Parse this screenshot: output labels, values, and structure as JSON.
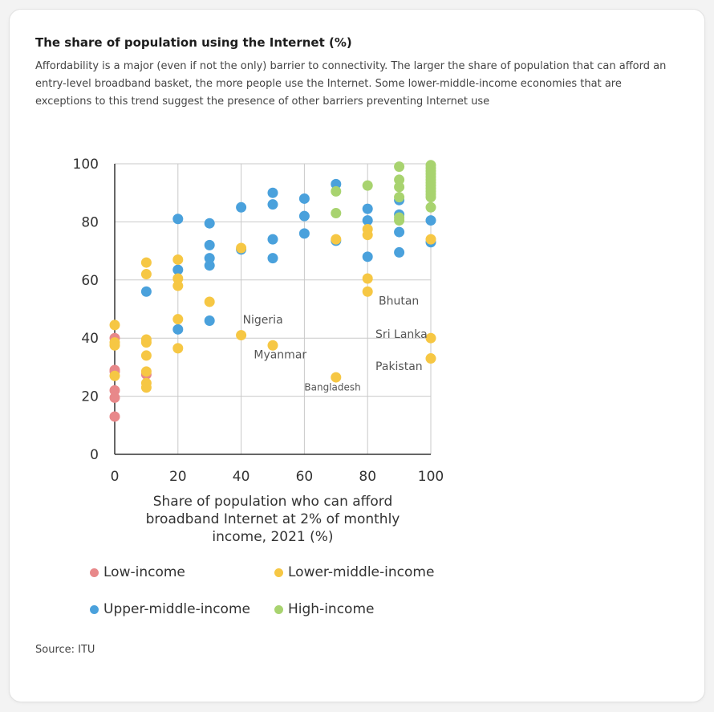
{
  "card": {
    "title": "The share of population using the Internet (%)",
    "description": "Affordability is a major (even if not the only) barrier to connectivity. The larger the share of population that can afford an entry-level broadband basket, the more people use the Internet. Some lower-middle-income economies that are exceptions to this trend suggest the presence of other barriers preventing Internet use",
    "source": "Source: ITU"
  },
  "chart_data": {
    "type": "scatter",
    "title": "The share of population using the Internet (%)",
    "xlabel": "Share of population who can afford broadband Internet at 2% of monthly income, 2021 (%)",
    "ylabel": "",
    "xlim": [
      0,
      100
    ],
    "ylim": [
      0,
      100
    ],
    "x_ticks": [
      "0",
      "20",
      "40",
      "60",
      "80",
      "100"
    ],
    "y_ticks": [
      "0",
      "20",
      "40",
      "60",
      "80",
      "100"
    ],
    "grid": true,
    "legend_position": "bottom",
    "series": [
      {
        "name": "Low-income",
        "color": "#e8888a",
        "points": [
          [
            0,
            13
          ],
          [
            0,
            19.5
          ],
          [
            0,
            22
          ],
          [
            0,
            29
          ],
          [
            0,
            28.5
          ],
          [
            0,
            40
          ],
          [
            10,
            27.5
          ]
        ]
      },
      {
        "name": "Lower-middle-income",
        "color": "#f6c744",
        "points": [
          [
            0,
            27
          ],
          [
            0,
            37.5
          ],
          [
            0,
            44.5
          ],
          [
            0,
            38.5
          ],
          [
            10,
            23
          ],
          [
            10,
            24.5
          ],
          [
            10,
            28.5
          ],
          [
            10,
            34
          ],
          [
            10,
            38.5
          ],
          [
            10,
            39.5
          ],
          [
            10,
            62
          ],
          [
            10,
            66
          ],
          [
            20,
            36.5
          ],
          [
            20,
            46.5
          ],
          [
            20,
            58
          ],
          [
            20,
            60.5
          ],
          [
            20,
            67
          ],
          [
            30,
            52.5
          ],
          [
            40,
            41
          ],
          [
            40,
            71
          ],
          [
            50,
            37.5
          ],
          [
            70,
            26.5
          ],
          [
            70,
            74
          ],
          [
            80,
            56
          ],
          [
            80,
            60.5
          ],
          [
            80,
            75.5
          ],
          [
            80,
            77.5
          ],
          [
            100,
            33
          ],
          [
            100,
            40
          ],
          [
            100,
            74
          ]
        ]
      },
      {
        "name": "Upper-middle-income",
        "color": "#4aa1dc",
        "points": [
          [
            10,
            56
          ],
          [
            20,
            43
          ],
          [
            20,
            63.5
          ],
          [
            20,
            81
          ],
          [
            30,
            46
          ],
          [
            30,
            65
          ],
          [
            30,
            67.5
          ],
          [
            30,
            72
          ],
          [
            30,
            79.5
          ],
          [
            40,
            70.5
          ],
          [
            40,
            85
          ],
          [
            50,
            67.5
          ],
          [
            50,
            74
          ],
          [
            50,
            86
          ],
          [
            50,
            90
          ],
          [
            60,
            76
          ],
          [
            60,
            82
          ],
          [
            60,
            88
          ],
          [
            70,
            73.5
          ],
          [
            70,
            93
          ],
          [
            80,
            68
          ],
          [
            80,
            80.5
          ],
          [
            80,
            84.5
          ],
          [
            90,
            69.5
          ],
          [
            90,
            76.5
          ],
          [
            90,
            82.5
          ],
          [
            90,
            87.5
          ],
          [
            100,
            73
          ],
          [
            100,
            80.5
          ]
        ]
      },
      {
        "name": "High-income",
        "color": "#a8d36f",
        "points": [
          [
            70,
            83
          ],
          [
            70,
            90.5
          ],
          [
            80,
            92.5
          ],
          [
            90,
            80.5
          ],
          [
            90,
            81.5
          ],
          [
            90,
            88.5
          ],
          [
            90,
            92
          ],
          [
            90,
            94.5
          ],
          [
            90,
            99
          ],
          [
            100,
            85
          ],
          [
            100,
            88.5
          ],
          [
            100,
            89.5
          ],
          [
            100,
            90.5
          ],
          [
            100,
            91.5
          ],
          [
            100,
            92.5
          ],
          [
            100,
            93.5
          ],
          [
            100,
            94.5
          ],
          [
            100,
            95.5
          ],
          [
            100,
            96.5
          ],
          [
            100,
            97.5
          ],
          [
            100,
            98.5
          ],
          [
            100,
            99.5
          ]
        ]
      }
    ],
    "annotations": [
      {
        "text": "Nigeria",
        "x": 40.5,
        "y": 45
      },
      {
        "text": "Myanmar",
        "x": 44,
        "y": 33
      },
      {
        "text": "Bangladesh",
        "x": 60,
        "y": 22
      },
      {
        "text": "Bhutan",
        "x": 83.5,
        "y": 51.5
      },
      {
        "text": "Sri Lanka",
        "x": 82.5,
        "y": 40
      },
      {
        "text": "Pakistan",
        "x": 82.5,
        "y": 29
      }
    ]
  },
  "legend": {
    "items": [
      {
        "label": "Low-income",
        "color": "#e8888a"
      },
      {
        "label": "Lower-middle-income",
        "color": "#f6c744"
      },
      {
        "label": "Upper-middle-income",
        "color": "#4aa1dc"
      },
      {
        "label": "High-income",
        "color": "#a8d36f"
      }
    ]
  }
}
